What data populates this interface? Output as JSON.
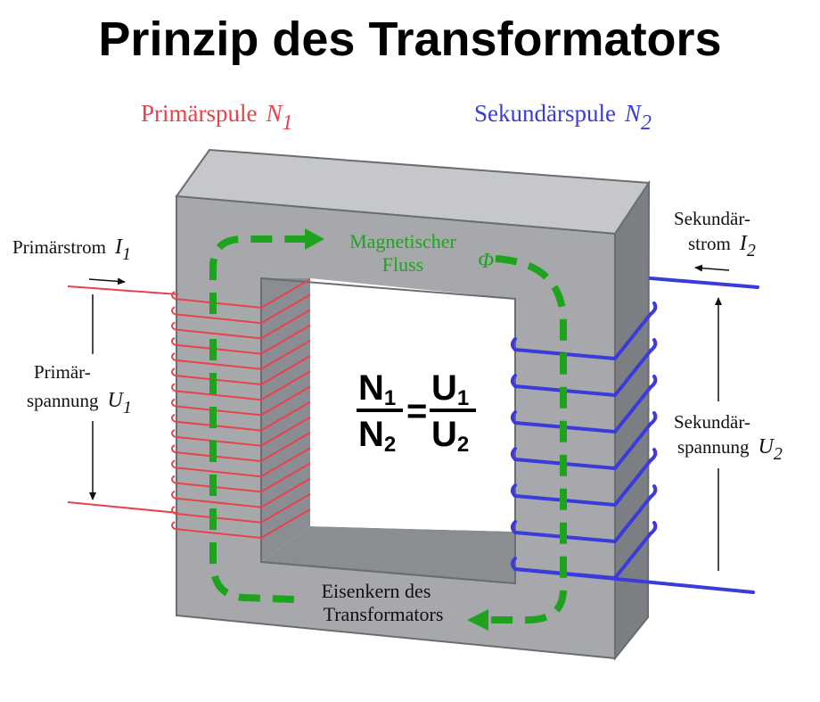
{
  "title": "Prinzip des Transformators",
  "primary": {
    "coil_label": "Primärspule",
    "coil_symbol": "N",
    "coil_index": "1",
    "current_label": "Primärstrom",
    "current_symbol": "I",
    "current_index": "1",
    "voltage_label_line1": "Primär-",
    "voltage_label_line2": "spannung",
    "voltage_symbol": "U",
    "voltage_index": "1"
  },
  "secondary": {
    "coil_label": "Sekundärspule",
    "coil_symbol": "N",
    "coil_index": "2",
    "current_label_line1": "Sekundär-",
    "current_label_line2": "strom",
    "current_symbol": "I",
    "current_index": "2",
    "voltage_label_line1": "Sekundär-",
    "voltage_label_line2": "spannung",
    "voltage_symbol": "U",
    "voltage_index": "2"
  },
  "flux": {
    "label_line1": "Magnetischer",
    "label_line2": "Fluss",
    "symbol": "Φ"
  },
  "core": {
    "label_line1": "Eisenkern des",
    "label_line2": "Transformators"
  },
  "formula": {
    "n": "N",
    "u": "U",
    "idx1": "1",
    "idx2": "2",
    "equals": "="
  },
  "colors": {
    "primary": "#e8424a",
    "secondary": "#3b3bdb",
    "flux": "#1fa31f",
    "core_front": "#a6a8ac",
    "core_top": "#c5c7ca",
    "core_side": "#7b7e83",
    "core_inner": "#8a8d91",
    "arrow": "#111111"
  }
}
